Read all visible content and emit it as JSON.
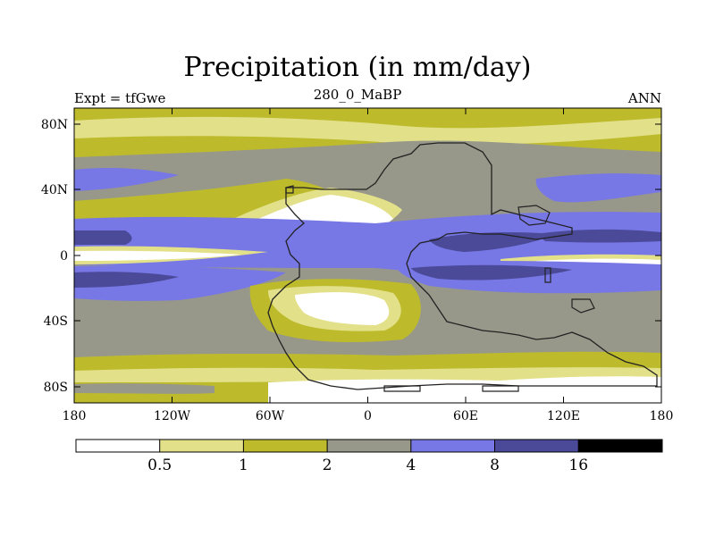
{
  "title": "Precipitation (in mm/day)",
  "subtitle_left": "Expt = tfGwe",
  "subtitle_center": "280_0_MaBP",
  "subtitle_right": "ANN",
  "lat_ticks": [
    "80N",
    "40N",
    "0",
    "40S",
    "80S"
  ],
  "lon_ticks": [
    "180",
    "120W",
    "60W",
    "0",
    "60E",
    "120E",
    "180"
  ],
  "colorbar": {
    "colors": [
      "#ffffff",
      "#e3e08a",
      "#bdbb2c",
      "#98988a",
      "#7777e6",
      "#4a4a99",
      "#000000"
    ],
    "labels": [
      "0.5",
      "1",
      "2",
      "4",
      "8",
      "16"
    ]
  },
  "palette": {
    "white": "#ffffff",
    "lightyellow": "#e3e08a",
    "olive": "#bdbb2c",
    "gray": "#98988a",
    "blue": "#7777e6",
    "darkblue": "#4a4a99",
    "outline": "#222222"
  }
}
